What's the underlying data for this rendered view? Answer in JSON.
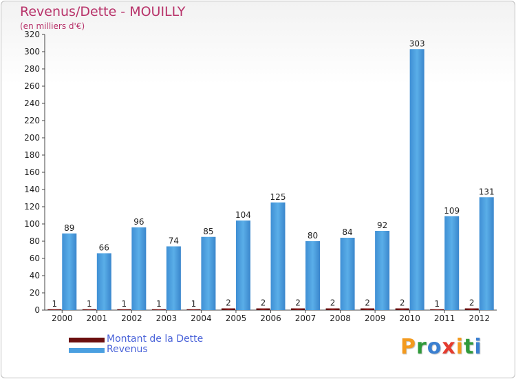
{
  "header": {
    "title": "Revenus/Dette - MOUILLY",
    "subtitle": "(en milliers d'€)"
  },
  "chart_data": {
    "type": "bar",
    "categories": [
      "2000",
      "2001",
      "2002",
      "2003",
      "2004",
      "2005",
      "2006",
      "2007",
      "2008",
      "2009",
      "2010",
      "2011",
      "2012"
    ],
    "series": [
      {
        "name": "Montant de la Dette",
        "color": "#6b0f0f",
        "values": [
          1,
          1,
          1,
          1,
          1,
          2,
          2,
          2,
          2,
          2,
          2,
          1,
          2
        ]
      },
      {
        "name": "Revenus",
        "color": "#4a9fe0",
        "values": [
          89,
          66,
          96,
          74,
          85,
          104,
          125,
          80,
          84,
          92,
          303,
          109,
          131
        ]
      }
    ],
    "ylim": [
      0,
      320
    ],
    "yticks": [
      0,
      20,
      40,
      60,
      80,
      100,
      120,
      140,
      160,
      180,
      200,
      220,
      240,
      260,
      280,
      300,
      320
    ],
    "grid": false,
    "legend_position": "bottom-left"
  },
  "legend": {
    "items": [
      {
        "label": "Montant de la Dette",
        "color": "#6b0f0f"
      },
      {
        "label": "Revenus",
        "color": "#4a9fe0"
      }
    ]
  },
  "logo": {
    "text": "Proxiti"
  }
}
